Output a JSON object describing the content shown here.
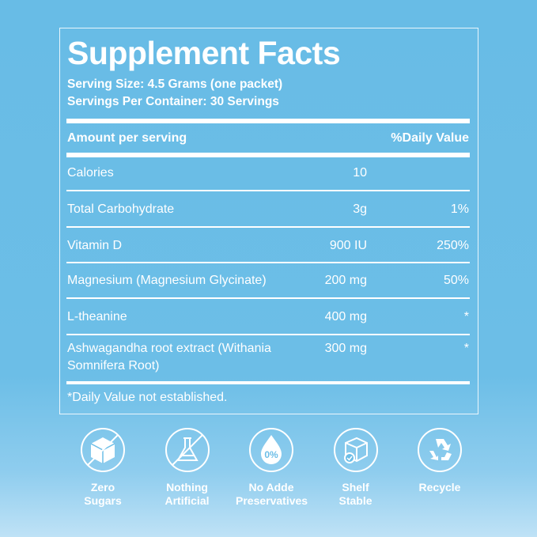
{
  "title": "Supplement Facts",
  "serving_size": "Serving Size: 4.5 Grams (one packet)",
  "servings_per_container": "Servings Per Container: 30 Servings",
  "header": {
    "amount": "Amount per serving",
    "dv": "%Daily Value"
  },
  "rows": [
    {
      "name": "Calories",
      "amount": "10",
      "dv": ""
    },
    {
      "name": "Total Carbohydrate",
      "amount": "3g",
      "dv": "1%"
    },
    {
      "name": "Vitamin D",
      "amount": "900 IU",
      "dv": "250%"
    },
    {
      "name": "Magnesium (Magnesium Glycinate)",
      "amount": "200 mg",
      "dv": "50%"
    },
    {
      "name": "L-theanine",
      "amount": "400 mg",
      "dv": "*"
    },
    {
      "name": "Ashwagandha  root extract (Withania",
      "name2": "Somnifera Root)",
      "amount": "300 mg",
      "dv": "*"
    }
  ],
  "footnote": "*Daily Value not established.",
  "badges": [
    {
      "icon": "no-sugar-cube-icon",
      "line1": "Zero",
      "line2": "Sugars"
    },
    {
      "icon": "no-flask-icon",
      "line1": "Nothing",
      "line2": "Artificial"
    },
    {
      "icon": "drop-0-percent-icon",
      "line1": "No Adde",
      "line2": "Preservatives",
      "icon_text": "0%"
    },
    {
      "icon": "box-check-icon",
      "line1": "Shelf",
      "line2": "Stable"
    },
    {
      "icon": "recycle-icon",
      "line1": "Recycle",
      "line2": ""
    }
  ]
}
